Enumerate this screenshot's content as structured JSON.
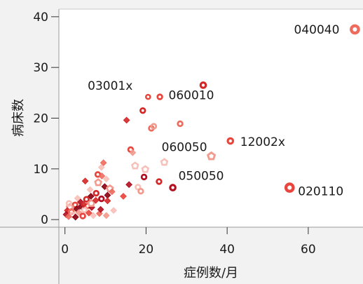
{
  "chart_data": {
    "type": "scatter",
    "xlabel": "症例数/月",
    "ylabel": "病床数",
    "xlim": [
      -1.5,
      73.5
    ],
    "ylim": [
      -1.5,
      41.5
    ],
    "x_ticks": [
      {
        "value": 0,
        "label": "0"
      },
      {
        "value": 20,
        "label": "20"
      },
      {
        "value": 40,
        "label": "40"
      },
      {
        "value": 60,
        "label": "60"
      }
    ],
    "y_ticks": [
      {
        "value": 0,
        "label": "0"
      },
      {
        "value": 10,
        "label": "10"
      },
      {
        "value": 20,
        "label": "20"
      },
      {
        "value": 30,
        "label": "30"
      },
      {
        "value": 40,
        "label": "40"
      }
    ],
    "grid": false,
    "colors": [
      "#8b0010",
      "#b01020",
      "#d42828",
      "#e8453c",
      "#ee6b5e",
      "#f29a8e",
      "#f7c0b8"
    ],
    "labeled_points": [
      {
        "label": "040040",
        "x": 71.5,
        "y": 37.5,
        "color": "#ee6b5e",
        "shape": "ring",
        "size": "lg"
      },
      {
        "label": "03001x",
        "x": 20.5,
        "y": 24.2,
        "color": "#e8453c",
        "shape": "ring",
        "size": "sm"
      },
      {
        "label": "060010",
        "x": 34.1,
        "y": 26.5,
        "color": "#d42828",
        "shape": "ring",
        "size": "md"
      },
      {
        "label": "12002x",
        "x": 40.8,
        "y": 15.5,
        "color": "#e8453c",
        "shape": "ring",
        "size": "md"
      },
      {
        "label": "060050",
        "x": 36.1,
        "y": 12.5,
        "color": "#f29a8e",
        "shape": "pentagon",
        "size": "md"
      },
      {
        "label": "050050",
        "x": 26.6,
        "y": 6.3,
        "color": "#b01020",
        "shape": "ring",
        "size": "md"
      },
      {
        "label": "020110",
        "x": 55.4,
        "y": 6.3,
        "color": "#e8453c",
        "shape": "ring",
        "size": "lg"
      }
    ],
    "points": [
      {
        "x": 19.2,
        "y": 21.5,
        "c": 2,
        "s": "ring"
      },
      {
        "x": 23.4,
        "y": 24.2,
        "c": 3,
        "s": "ring"
      },
      {
        "x": 28.4,
        "y": 18.9,
        "c": 4,
        "s": "ring"
      },
      {
        "x": 15.2,
        "y": 19.6,
        "c": 2,
        "s": "diamond"
      },
      {
        "x": 21.3,
        "y": 18.0,
        "c": 4,
        "s": "ring"
      },
      {
        "x": 21.9,
        "y": 18.4,
        "c": 5,
        "s": "ring"
      },
      {
        "x": 16.2,
        "y": 13.8,
        "c": 3,
        "s": "ring"
      },
      {
        "x": 16.7,
        "y": 13.2,
        "c": 5,
        "s": "diamond"
      },
      {
        "x": 24.5,
        "y": 11.3,
        "c": 6,
        "s": "pentagon"
      },
      {
        "x": 17.3,
        "y": 10.6,
        "c": 6,
        "s": "pentagon"
      },
      {
        "x": 19.8,
        "y": 9.9,
        "c": 6,
        "s": "pentagon"
      },
      {
        "x": 19.5,
        "y": 8.4,
        "c": 1,
        "s": "ring"
      },
      {
        "x": 23.2,
        "y": 7.5,
        "c": 2,
        "s": "ring"
      },
      {
        "x": 15.8,
        "y": 6.9,
        "c": 1,
        "s": "diamond"
      },
      {
        "x": 18.0,
        "y": 6.4,
        "c": 6,
        "s": "ring"
      },
      {
        "x": 18.7,
        "y": 5.6,
        "c": 5,
        "s": "ring"
      },
      {
        "x": 9.5,
        "y": 11.2,
        "c": 4,
        "s": "diamond"
      },
      {
        "x": 9.0,
        "y": 10.3,
        "c": 6,
        "s": "diamond"
      },
      {
        "x": 8.1,
        "y": 8.9,
        "c": 3,
        "s": "ring"
      },
      {
        "x": 9.1,
        "y": 8.6,
        "c": 4,
        "s": "diamond"
      },
      {
        "x": 10.2,
        "y": 8.0,
        "c": 6,
        "s": "diamond"
      },
      {
        "x": 5.0,
        "y": 7.6,
        "c": 2,
        "s": "diamond"
      },
      {
        "x": 8.2,
        "y": 7.3,
        "c": 5,
        "s": "pentagon"
      },
      {
        "x": 9.8,
        "y": 6.5,
        "c": 0,
        "s": "diamond"
      },
      {
        "x": 11.1,
        "y": 6.1,
        "c": 5,
        "s": "pentagon"
      },
      {
        "x": 7.7,
        "y": 5.2,
        "c": 2,
        "s": "ring"
      },
      {
        "x": 10.5,
        "y": 4.8,
        "c": 0,
        "s": "diamond"
      },
      {
        "x": 9.0,
        "y": 4.1,
        "c": 1,
        "s": "ring"
      },
      {
        "x": 10.5,
        "y": 3.7,
        "c": 2,
        "s": "diamond"
      },
      {
        "x": 6.4,
        "y": 4.6,
        "c": 0,
        "s": "diamond"
      },
      {
        "x": 5.3,
        "y": 4.0,
        "c": 2,
        "s": "ring"
      },
      {
        "x": 3.8,
        "y": 3.5,
        "c": 1,
        "s": "diamond"
      },
      {
        "x": 2.5,
        "y": 2.9,
        "c": 3,
        "s": "ring"
      },
      {
        "x": 4.0,
        "y": 2.6,
        "c": 0,
        "s": "diamond"
      },
      {
        "x": 5.6,
        "y": 2.7,
        "c": 4,
        "s": "ring"
      },
      {
        "x": 6.6,
        "y": 2.4,
        "c": 1,
        "s": "diamond"
      },
      {
        "x": 1.2,
        "y": 2.4,
        "c": 5,
        "s": "pentagon"
      },
      {
        "x": 2.9,
        "y": 2.1,
        "c": 0,
        "s": "diamond"
      },
      {
        "x": 4.8,
        "y": 1.9,
        "c": 6,
        "s": "ring"
      },
      {
        "x": 0.6,
        "y": 1.8,
        "c": 2,
        "s": "diamond"
      },
      {
        "x": 1.6,
        "y": 1.6,
        "c": 4,
        "s": "ring"
      },
      {
        "x": 3.4,
        "y": 1.4,
        "c": 5,
        "s": "diamond"
      },
      {
        "x": 5.9,
        "y": 1.3,
        "c": 3,
        "s": "diamond"
      },
      {
        "x": 0.3,
        "y": 1.0,
        "c": 1,
        "s": "diamond"
      },
      {
        "x": 1.9,
        "y": 0.9,
        "c": 6,
        "s": "ring"
      },
      {
        "x": 0.9,
        "y": 0.6,
        "c": 4,
        "s": "diamond"
      },
      {
        "x": 2.6,
        "y": 0.5,
        "c": 0,
        "s": "diamond"
      },
      {
        "x": 4.4,
        "y": 0.7,
        "c": 3,
        "s": "ring"
      },
      {
        "x": 7.0,
        "y": 0.8,
        "c": 6,
        "s": "diamond"
      },
      {
        "x": 8.5,
        "y": 1.2,
        "c": 4,
        "s": "diamond"
      },
      {
        "x": 10.2,
        "y": 0.8,
        "c": 5,
        "s": "diamond"
      },
      {
        "x": 6.5,
        "y": 3.2,
        "c": 5,
        "s": "pentagon"
      },
      {
        "x": 7.6,
        "y": 3.8,
        "c": 2,
        "s": "diamond"
      },
      {
        "x": 3.1,
        "y": 4.2,
        "c": 6,
        "s": "diamond"
      },
      {
        "x": 4.6,
        "y": 3.0,
        "c": 2,
        "s": "diamond"
      },
      {
        "x": 1.0,
        "y": 3.2,
        "c": 6,
        "s": "ring"
      },
      {
        "x": 8.8,
        "y": 2.0,
        "c": 1,
        "s": "diamond"
      },
      {
        "x": 11.6,
        "y": 5.5,
        "c": 4,
        "s": "diamond"
      },
      {
        "x": 12.0,
        "y": 1.8,
        "c": 6,
        "s": "diamond"
      },
      {
        "x": 14.4,
        "y": 4.6,
        "c": 3,
        "s": "diamond"
      },
      {
        "x": 6.2,
        "y": 5.9,
        "c": 6,
        "s": "diamond"
      }
    ]
  }
}
